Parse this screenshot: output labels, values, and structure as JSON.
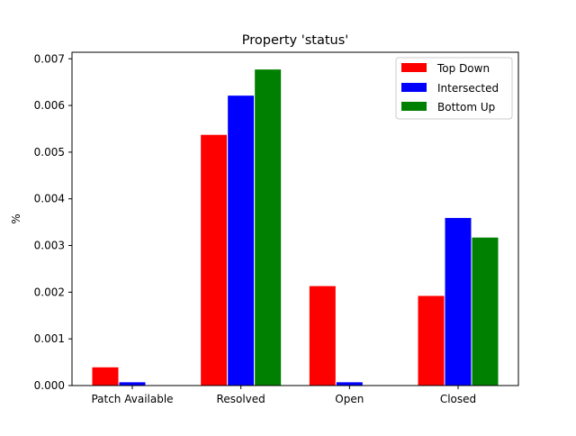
{
  "chart_data": {
    "type": "bar",
    "title": "Property 'status'",
    "xlabel": "",
    "ylabel": "%",
    "categories": [
      "Patch Available",
      "Resolved",
      "Open",
      "Closed"
    ],
    "series": [
      {
        "name": "Top Down",
        "color": "#ff0000",
        "values": [
          0.0004,
          0.00538,
          0.00214,
          0.00193
        ]
      },
      {
        "name": "Intersected",
        "color": "#0000ff",
        "values": [
          8e-05,
          0.00622,
          8e-05,
          0.0036
        ]
      },
      {
        "name": "Bottom Up",
        "color": "#008000",
        "values": [
          0.0,
          0.00678,
          0.0,
          0.00318
        ]
      }
    ],
    "ylim": [
      0,
      0.00714
    ],
    "yticks": [
      "0.000",
      "0.001",
      "0.002",
      "0.003",
      "0.004",
      "0.005",
      "0.006",
      "0.007"
    ],
    "ytick_values": [
      0,
      0.001,
      0.002,
      0.003,
      0.004,
      0.005,
      0.006,
      0.007
    ],
    "grid": false,
    "legend_position": "top-right"
  }
}
